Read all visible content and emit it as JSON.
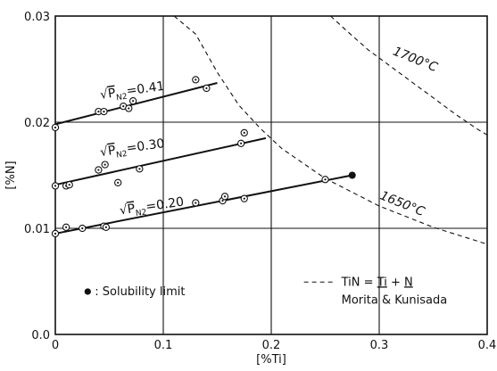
{
  "chart_data": {
    "type": "scatter",
    "xlabel": "[%Ti]",
    "ylabel": "[%N]",
    "xlim": [
      0,
      0.4
    ],
    "ylim": [
      0,
      0.03
    ],
    "x_ticks": [
      "0",
      "0.1",
      "0.2",
      "0.3",
      "0.4"
    ],
    "y_ticks": [
      "0.0",
      "0.01",
      "0.02",
      "0.03"
    ],
    "grid": true,
    "series": [
      {
        "name": "√P_N2=0.41",
        "label_main": "√",
        "label_p": "P",
        "label_sub": "N2",
        "label_value": "=0.41",
        "points": [
          [
            0.0,
            0.0195
          ],
          [
            0.04,
            0.021
          ],
          [
            0.045,
            0.021
          ],
          [
            0.063,
            0.0215
          ],
          [
            0.068,
            0.0213
          ],
          [
            0.072,
            0.022
          ],
          [
            0.13,
            0.024
          ],
          [
            0.14,
            0.0232
          ]
        ],
        "fit": [
          [
            0.0,
            0.0198
          ],
          [
            0.15,
            0.0237
          ]
        ]
      },
      {
        "name": "√P_N2=0.30",
        "label_main": "√",
        "label_p": "P",
        "label_sub": "N2",
        "label_value": "=0.30",
        "points": [
          [
            0.0,
            0.014
          ],
          [
            0.01,
            0.014
          ],
          [
            0.013,
            0.0141
          ],
          [
            0.04,
            0.0155
          ],
          [
            0.046,
            0.016
          ],
          [
            0.058,
            0.0143
          ],
          [
            0.078,
            0.0156
          ],
          [
            0.172,
            0.018
          ],
          [
            0.175,
            0.019
          ]
        ],
        "fit": [
          [
            0.0,
            0.0141
          ],
          [
            0.195,
            0.0185
          ]
        ]
      },
      {
        "name": "√P_N2=0.20",
        "label_main": "√",
        "label_p": "P",
        "label_sub": "N2",
        "label_value": "=0.20",
        "points": [
          [
            0.0,
            0.0095
          ],
          [
            0.01,
            0.0101
          ],
          [
            0.025,
            0.01
          ],
          [
            0.045,
            0.0102
          ],
          [
            0.047,
            0.0101
          ],
          [
            0.13,
            0.0124
          ],
          [
            0.155,
            0.0126
          ],
          [
            0.157,
            0.013
          ],
          [
            0.175,
            0.0128
          ],
          [
            0.25,
            0.0146
          ]
        ],
        "fit": [
          [
            0.0,
            0.0095
          ],
          [
            0.275,
            0.015
          ]
        ]
      }
    ],
    "solubility_point": [
      0.275,
      0.015
    ],
    "isotherms": [
      {
        "label": "1650°C",
        "points": [
          [
            0.11,
            0.03
          ],
          [
            0.13,
            0.0283
          ],
          [
            0.15,
            0.0247
          ],
          [
            0.17,
            0.0216
          ],
          [
            0.19,
            0.0194
          ],
          [
            0.21,
            0.0175
          ],
          [
            0.25,
            0.0147
          ],
          [
            0.3,
            0.0121
          ],
          [
            0.35,
            0.0101
          ],
          [
            0.4,
            0.0085
          ]
        ]
      },
      {
        "label": "1700°C",
        "points": [
          [
            0.255,
            0.03
          ],
          [
            0.27,
            0.0286
          ],
          [
            0.29,
            0.0268
          ],
          [
            0.31,
            0.0253
          ],
          [
            0.33,
            0.0238
          ],
          [
            0.35,
            0.0223
          ],
          [
            0.37,
            0.0208
          ],
          [
            0.39,
            0.0194
          ],
          [
            0.4,
            0.0188
          ]
        ]
      }
    ],
    "legend": {
      "line_label": "TiN = Ti + N",
      "line_label_parts": [
        "TiN = ",
        "Ti",
        " + ",
        "N"
      ],
      "source": "Morita & Kunisada",
      "point_label": ": Solubility limit"
    }
  }
}
